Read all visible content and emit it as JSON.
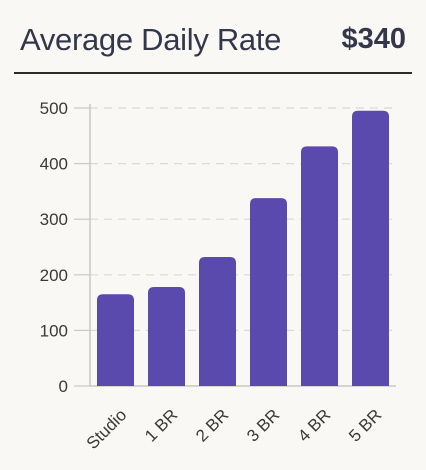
{
  "header": {
    "title": "Average Daily Rate",
    "value": "$340"
  },
  "colors": {
    "bar": "#5b4aae",
    "grid": "#d8d8d8",
    "axis": "#c8c8c8"
  },
  "chart_data": {
    "type": "bar",
    "categories": [
      "Studio",
      "1 BR",
      "2 BR",
      "3 BR",
      "4 BR",
      "5 BR"
    ],
    "values": [
      165,
      178,
      232,
      338,
      431,
      495
    ],
    "ylim": [
      0,
      500
    ],
    "yticks": [
      0,
      100,
      200,
      300,
      400,
      500
    ],
    "grid": true,
    "xlabel": "",
    "ylabel": ""
  }
}
